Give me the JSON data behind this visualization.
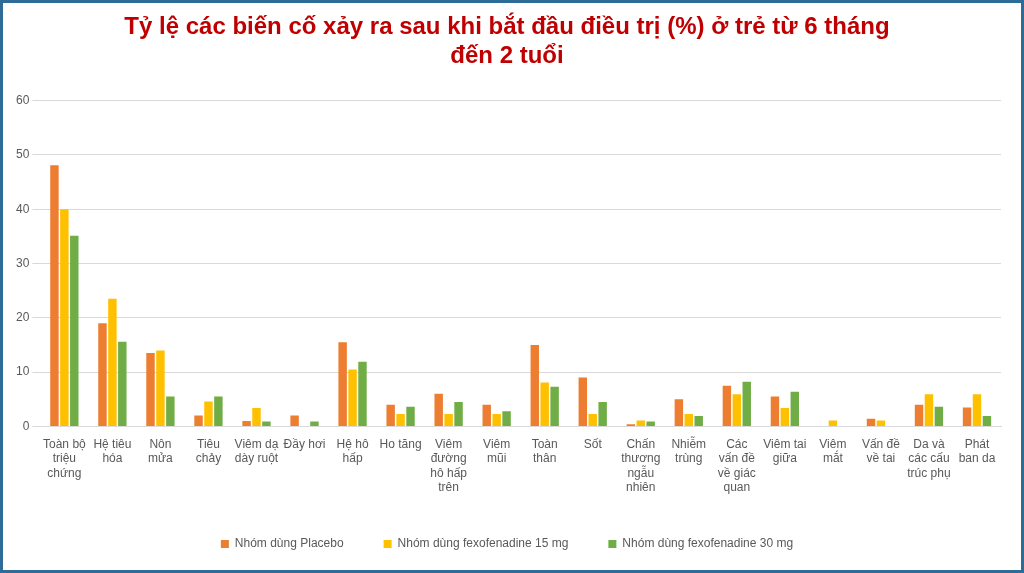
{
  "chart_data": {
    "type": "bar",
    "title": "Tỷ lệ các biến cố xảy ra sau khi bắt đầu điều trị (%) ở trẻ từ 6 tháng đến 2 tuổi",
    "categories": [
      "Toàn bộ triệu chứng",
      "Hệ tiêu hóa",
      "Nôn mửa",
      "Tiêu chảy",
      "Viêm dạ dày ruột",
      "Đầy hơi",
      "Hệ hô hấp",
      "Ho tăng",
      "Viêm đường hô hấp trên",
      "Viêm mũi",
      "Toàn thân",
      "Sốt",
      "Chấn thương ngẫu nhiên",
      "Nhiễm trùng",
      "Các vấn đề về giác quan",
      "Viêm tai giữa",
      "Viêm mắt",
      "Vấn đề về tai",
      "Da và các cấu trúc phụ",
      "Phát ban da"
    ],
    "series": [
      {
        "name": "Nhóm dùng Placebo",
        "color": "#ed7d31",
        "values": [
          48.1,
          19,
          13.5,
          2,
          1,
          2,
          15.5,
          4,
          6,
          4,
          15,
          9,
          0.4,
          5,
          7.5,
          5.5,
          0,
          1.4,
          4,
          3.5
        ]
      },
      {
        "name": "Nhóm dùng fexofenadine 15 mg",
        "color": "#ffc000",
        "values": [
          40,
          23.5,
          14,
          4.6,
          3.4,
          0,
          10.5,
          2.3,
          2.3,
          2.3,
          8.1,
          2.3,
          1.1,
          2.3,
          5.9,
          3.4,
          1.1,
          1.1,
          5.9,
          5.9
        ]
      },
      {
        "name": "Nhóm dùng fexofenadine 30 mg",
        "color": "#70ad47",
        "values": [
          35.1,
          15.6,
          5.5,
          5.5,
          0.9,
          0.9,
          11.9,
          3.6,
          4.5,
          2.8,
          7.3,
          4.5,
          0.9,
          1.9,
          8.2,
          6.4,
          0,
          0,
          3.6,
          1.9
        ]
      }
    ],
    "ylim": [
      0,
      60
    ],
    "yticks": [
      0,
      10,
      20,
      30,
      40,
      50,
      60
    ],
    "grid": "y",
    "legend": "bottom"
  }
}
